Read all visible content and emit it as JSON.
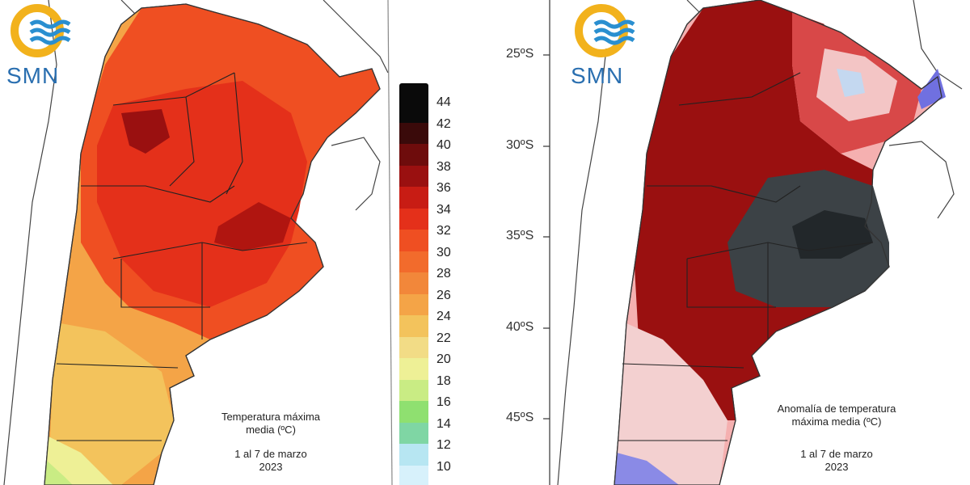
{
  "left_panel": {
    "logo_text": "SMN",
    "caption_line1": "Temperatura máxima",
    "caption_line2": "media (ºC)",
    "period": "1 al 7 de marzo",
    "year": "2023",
    "scale": {
      "labels": [
        "44",
        "42",
        "40",
        "38",
        "36",
        "34",
        "32",
        "30",
        "28",
        "26",
        "24",
        "22",
        "20",
        "18",
        "16",
        "14",
        "12",
        "10"
      ],
      "colors": [
        "#0a0a0a",
        "#3a0a0a",
        "#6e0c0c",
        "#9a1010",
        "#c81c14",
        "#e4301a",
        "#ef4f22",
        "#f26b2c",
        "#f2873a",
        "#f4a447",
        "#f3c35c",
        "#f2dc86",
        "#eef096",
        "#c9ec84",
        "#8fe070",
        "#7fd6a4",
        "#b7e6f2",
        "#d7f1fb"
      ]
    }
  },
  "right_panel": {
    "logo_text": "SMN",
    "caption_line1": "Anomalía de temperatura",
    "caption_line2": "máxima media (ºC)",
    "period": "1 al 7 de marzo",
    "year": "2023",
    "lat_labels": [
      "25ºS",
      "30ºS",
      "35ºS",
      "40ºS",
      "45ºS"
    ]
  },
  "colors": {
    "logo_yellow": "#f2b21c",
    "logo_blue": "#2a8fd0",
    "border_line": "#333333"
  }
}
